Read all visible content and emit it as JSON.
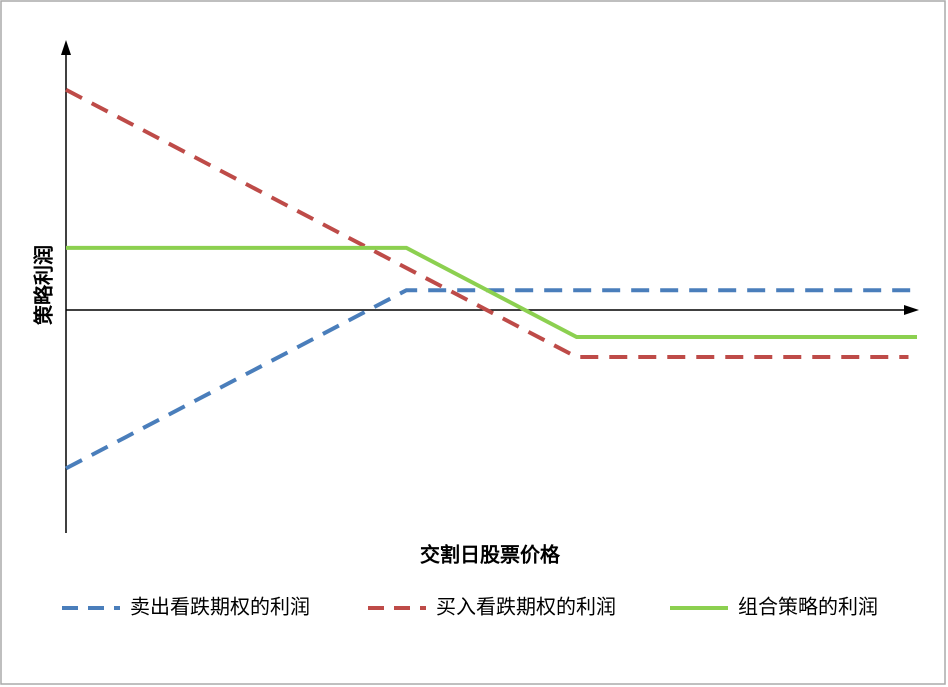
{
  "chart_data": {
    "type": "line",
    "x_label": "交割日股票价格",
    "y_label": "策略利润",
    "xlim": [
      0,
      100
    ],
    "ylim": [
      -100,
      120
    ],
    "series": [
      {
        "name": "卖出看跌期权的利润",
        "color": "#4a7ebb",
        "dash": true,
        "x": [
          0,
          40,
          100
        ],
        "values": [
          -71,
          9,
          9
        ]
      },
      {
        "name": "买入看跌期权的利润",
        "color": "#be4b48",
        "dash": true,
        "x": [
          0,
          60,
          99
        ],
        "values": [
          99,
          -21,
          -21
        ]
      },
      {
        "name": "组合策略的利润",
        "color": "#8cd050",
        "dash": false,
        "x": [
          0,
          40,
          60,
          100
        ],
        "values": [
          28,
          28,
          -12,
          -12
        ]
      }
    ]
  }
}
